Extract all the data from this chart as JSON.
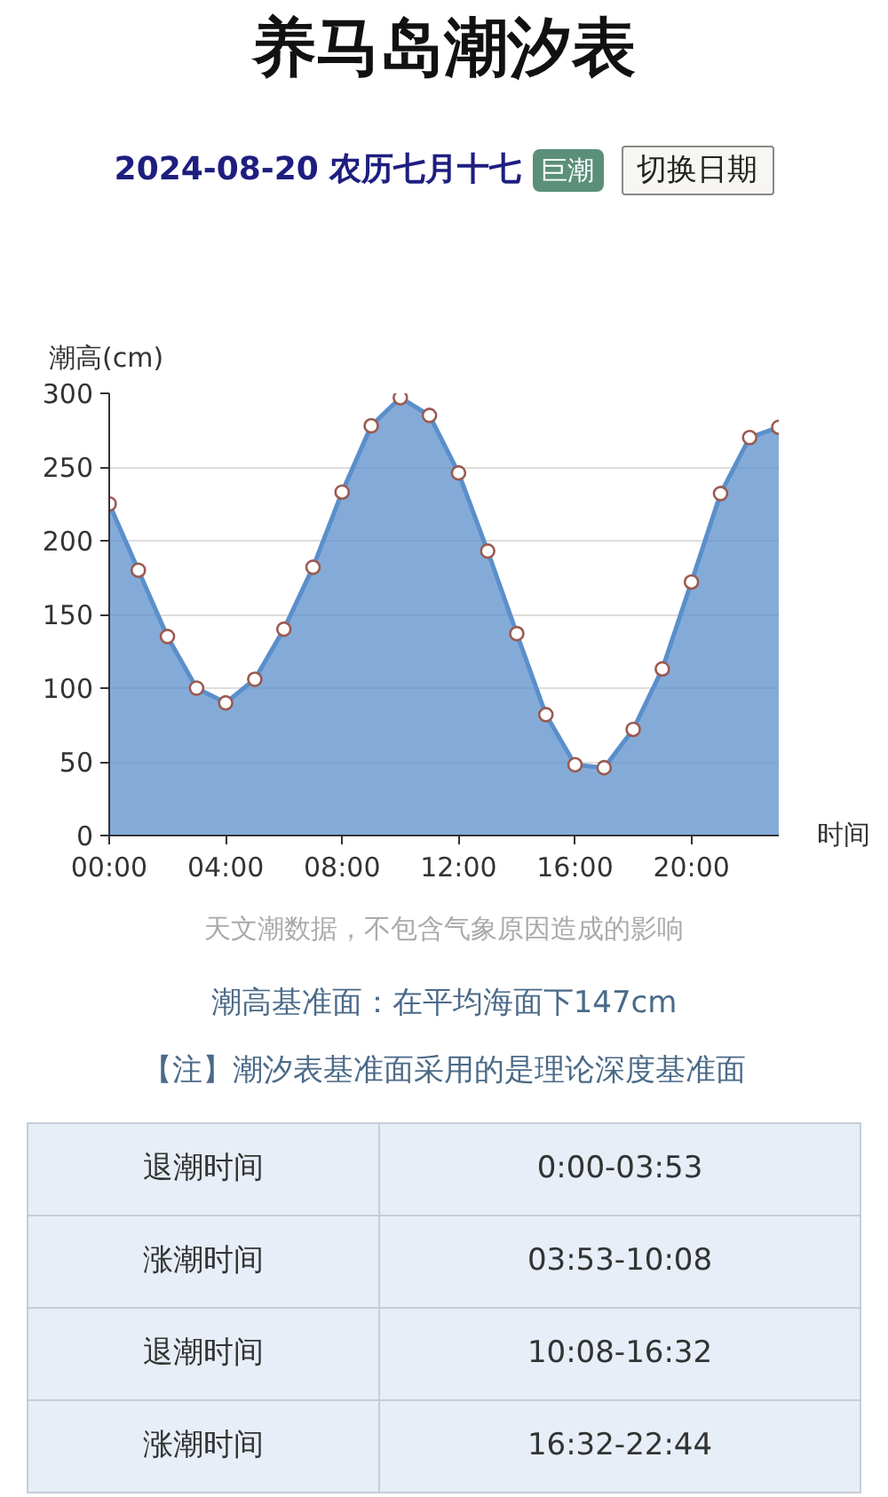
{
  "chart_data": {
    "type": "area",
    "title": "养马岛潮汐表",
    "subtitle": "2024-08-20 农历七月十七",
    "ylabel": "潮高(cm)",
    "xlabel": "时间",
    "x": [
      0,
      1,
      2,
      3,
      4,
      5,
      6,
      7,
      8,
      9,
      10,
      11,
      12,
      13,
      14,
      15,
      16,
      17,
      18,
      19,
      20,
      21,
      22,
      23
    ],
    "series": [
      {
        "color": "#5b8fcb",
        "values": [
          225,
          180,
          135,
          100,
          90,
          106,
          140,
          182,
          233,
          278,
          297,
          285,
          246,
          193,
          137,
          82,
          48,
          46,
          72,
          113,
          172,
          232,
          270,
          277
        ]
      }
    ],
    "xlim": [
      0,
      23
    ],
    "ylim": [
      0,
      300
    ],
    "xticks": [
      {
        "value": 0,
        "label": "00:00"
      },
      {
        "value": 4,
        "label": "04:00"
      },
      {
        "value": 8,
        "label": "08:00"
      },
      {
        "value": 12,
        "label": "12:00"
      },
      {
        "value": 16,
        "label": "16:00"
      },
      {
        "value": 20,
        "label": "20:00"
      }
    ],
    "yticks": [
      0,
      50,
      100,
      150,
      200,
      250,
      300
    ],
    "grid": "y",
    "marker": "circle",
    "annotations": [
      "巨潮",
      "切换日期",
      "天文潮数据，不包含气象原因造成的影响",
      "潮高基准面：在平均海面下147cm",
      "【注】潮汐表基准面采用的是理论深度基准面",
      "退潮时间",
      "0:00-03:53",
      "涨潮时间",
      "03:53-10:08",
      "退潮时间",
      "10:08-16:32",
      "涨潮时间",
      "16:32-22:44"
    ]
  }
}
